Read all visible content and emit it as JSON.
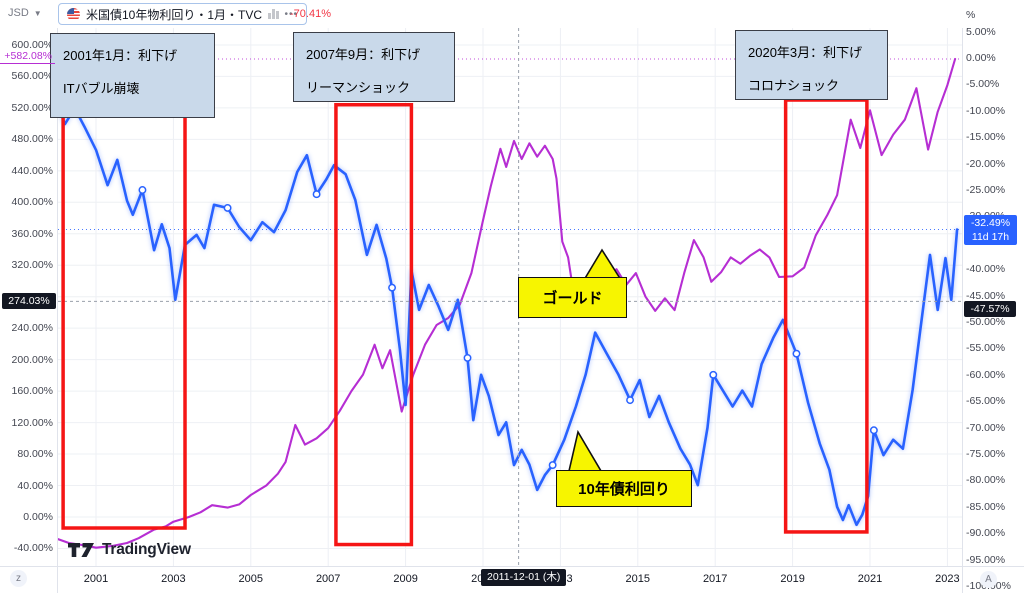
{
  "toolbar": {
    "currency": "JSD",
    "symbol_title": "米国債10年物利回り・1月・TVC",
    "more_label": "•••",
    "change_percent": "-70.41%"
  },
  "axes": {
    "left": {
      "ticks": [
        600,
        560,
        520,
        480,
        440,
        400,
        360,
        320,
        240,
        200,
        160,
        120,
        80,
        40,
        0,
        -40
      ]
    },
    "right": {
      "unit": "%",
      "ticks": [
        5,
        0,
        -5,
        -10,
        -15,
        -20,
        -25,
        -30,
        -40,
        -45,
        -50,
        -55,
        -60,
        -65,
        -70,
        -75,
        -80,
        -85,
        -90,
        -95,
        -100
      ]
    }
  },
  "badges": {
    "gold_current": "+582.08%",
    "crosshair_left": "274.03%",
    "yield_current_line1": "-32.49%",
    "yield_current_line2": "11d 17h",
    "crosshair_right": "-47.57%"
  },
  "bottom": {
    "date_tooltip": "2011-12-01 (木)",
    "logo_text": "TradingView",
    "timezone_button": "z",
    "a_button": "A"
  },
  "annotations": {
    "boxes": [
      {
        "line1": "2001年1月：利下げ",
        "line2": "ITバブル崩壊"
      },
      {
        "line1": "2007年9月：利下げ",
        "line2": "リーマンショック"
      },
      {
        "line1": "2020年3月：利下げ",
        "line2": "コロナショック"
      }
    ],
    "callouts": [
      {
        "label": "ゴールド"
      },
      {
        "label": "10年債利回り"
      }
    ]
  },
  "chart_data": {
    "type": "line",
    "title": "米国債10年物利回り・1月・TVC",
    "x_axis": {
      "unit": "year",
      "visible_ticks": [
        2001,
        2003,
        2005,
        2007,
        2009,
        2011,
        2013,
        2015,
        2017,
        2019,
        2021,
        2023
      ]
    },
    "left_axis": {
      "unit": "%",
      "tick_range": [
        -40,
        600
      ],
      "tick_step": 40
    },
    "right_axis": {
      "unit": "%",
      "tick_range": [
        -100,
        5
      ],
      "tick_step": 5
    },
    "grid": true,
    "crosshair": {
      "date": "2011-12-01 (木)",
      "year_x": 2011.92,
      "left_value": 274.03,
      "right_value": -47.57,
      "hovered_change": "-70.41%"
    },
    "series": [
      {
        "name": "ゴールド",
        "color": "#b62ed3",
        "axis": "left",
        "last_value": 582.08,
        "points": [
          [
            1999.95,
            -27
          ],
          [
            2000.3,
            -33
          ],
          [
            2000.7,
            -36
          ],
          [
            2001.0,
            -39
          ],
          [
            2001.4,
            -37
          ],
          [
            2001.8,
            -33
          ],
          [
            2002.1,
            -27
          ],
          [
            2002.5,
            -16
          ],
          [
            2002.8,
            -12
          ],
          [
            2003.0,
            -6
          ],
          [
            2003.4,
            0
          ],
          [
            2003.7,
            6
          ],
          [
            2004.0,
            15
          ],
          [
            2004.4,
            12
          ],
          [
            2004.7,
            16
          ],
          [
            2005.0,
            28
          ],
          [
            2005.4,
            40
          ],
          [
            2005.7,
            55
          ],
          [
            2005.9,
            70
          ],
          [
            2006.15,
            117
          ],
          [
            2006.4,
            92
          ],
          [
            2006.7,
            100
          ],
          [
            2007.0,
            113
          ],
          [
            2007.3,
            135
          ],
          [
            2007.6,
            160
          ],
          [
            2007.9,
            181
          ],
          [
            2008.2,
            219
          ],
          [
            2008.4,
            189
          ],
          [
            2008.6,
            212
          ],
          [
            2008.9,
            134
          ],
          [
            2009.2,
            181
          ],
          [
            2009.5,
            219
          ],
          [
            2009.8,
            244
          ],
          [
            2010.1,
            253
          ],
          [
            2010.4,
            270
          ],
          [
            2010.7,
            310
          ],
          [
            2011.0,
            377
          ],
          [
            2011.2,
            420
          ],
          [
            2011.45,
            468
          ],
          [
            2011.6,
            445
          ],
          [
            2011.8,
            478
          ],
          [
            2012.0,
            455
          ],
          [
            2012.2,
            475
          ],
          [
            2012.4,
            458
          ],
          [
            2012.6,
            472
          ],
          [
            2012.8,
            455
          ],
          [
            2012.9,
            430
          ],
          [
            2013.05,
            350
          ],
          [
            2013.2,
            330
          ],
          [
            2013.35,
            282
          ],
          [
            2013.55,
            302
          ],
          [
            2013.75,
            282
          ],
          [
            2013.95,
            263
          ],
          [
            2014.2,
            305
          ],
          [
            2014.45,
            315
          ],
          [
            2014.7,
            295
          ],
          [
            2014.95,
            310
          ],
          [
            2015.2,
            280
          ],
          [
            2015.45,
            262
          ],
          [
            2015.7,
            278
          ],
          [
            2015.95,
            263
          ],
          [
            2016.2,
            310
          ],
          [
            2016.45,
            352
          ],
          [
            2016.7,
            330
          ],
          [
            2016.9,
            299
          ],
          [
            2017.15,
            311
          ],
          [
            2017.4,
            330
          ],
          [
            2017.65,
            322
          ],
          [
            2017.9,
            332
          ],
          [
            2018.15,
            340
          ],
          [
            2018.4,
            330
          ],
          [
            2018.65,
            305
          ],
          [
            2019.0,
            306
          ],
          [
            2019.3,
            317
          ],
          [
            2019.6,
            358
          ],
          [
            2019.9,
            384
          ],
          [
            2020.15,
            409
          ],
          [
            2020.5,
            505
          ],
          [
            2020.75,
            469
          ],
          [
            2021.0,
            517
          ],
          [
            2021.3,
            460
          ],
          [
            2021.6,
            486
          ],
          [
            2021.9,
            505
          ],
          [
            2022.2,
            545
          ],
          [
            2022.5,
            467
          ],
          [
            2022.75,
            515
          ],
          [
            2023.0,
            549
          ],
          [
            2023.2,
            582.08
          ]
        ]
      },
      {
        "name": "10年債利回り",
        "color": "#2962ff",
        "axis": "right",
        "last_value": -32.49,
        "points": [
          [
            1999.95,
            -8
          ],
          [
            2000.2,
            -12.5
          ],
          [
            2000.45,
            -9.5
          ],
          [
            2000.7,
            -13
          ],
          [
            2001.0,
            -17.4
          ],
          [
            2001.3,
            -24.1
          ],
          [
            2001.55,
            -19.3
          ],
          [
            2001.8,
            -27
          ],
          [
            2001.95,
            -29.7
          ],
          [
            2002.2,
            -25.0
          ],
          [
            2002.5,
            -36.4
          ],
          [
            2002.7,
            -31.5
          ],
          [
            2002.9,
            -36
          ],
          [
            2003.05,
            -45.8
          ],
          [
            2003.3,
            -35.4
          ],
          [
            2003.6,
            -33.5
          ],
          [
            2003.8,
            -36
          ],
          [
            2004.05,
            -27.8
          ],
          [
            2004.4,
            -28.4
          ],
          [
            2004.7,
            -32
          ],
          [
            2005.0,
            -34.5
          ],
          [
            2005.3,
            -31.1
          ],
          [
            2005.6,
            -33
          ],
          [
            2005.9,
            -28.8
          ],
          [
            2006.2,
            -21.6
          ],
          [
            2006.45,
            -18.4
          ],
          [
            2006.7,
            -25.8
          ],
          [
            2006.95,
            -23
          ],
          [
            2007.15,
            -20.3
          ],
          [
            2007.45,
            -22
          ],
          [
            2007.7,
            -26.9
          ],
          [
            2008.0,
            -37.3
          ],
          [
            2008.25,
            -31.6
          ],
          [
            2008.5,
            -38
          ],
          [
            2008.65,
            -43.5
          ],
          [
            2008.85,
            -55
          ],
          [
            2009.0,
            -65.7
          ],
          [
            2009.15,
            -40.2
          ],
          [
            2009.35,
            -47.7
          ],
          [
            2009.6,
            -43.0
          ],
          [
            2009.85,
            -47
          ],
          [
            2010.1,
            -51.5
          ],
          [
            2010.35,
            -45.8
          ],
          [
            2010.6,
            -56.8
          ],
          [
            2010.75,
            -68.6
          ],
          [
            2010.95,
            -60.0
          ],
          [
            2011.15,
            -64
          ],
          [
            2011.4,
            -71.4
          ],
          [
            2011.6,
            -69
          ],
          [
            2011.8,
            -77.1
          ],
          [
            2012.0,
            -74.2
          ],
          [
            2012.2,
            -77
          ],
          [
            2012.4,
            -81.8
          ],
          [
            2012.6,
            -79
          ],
          [
            2012.8,
            -77.1
          ],
          [
            2013.1,
            -72.3
          ],
          [
            2013.4,
            -66
          ],
          [
            2013.65,
            -60
          ],
          [
            2013.9,
            -52
          ],
          [
            2014.2,
            -56
          ],
          [
            2014.5,
            -60
          ],
          [
            2014.8,
            -64.8
          ],
          [
            2015.05,
            -61
          ],
          [
            2015.3,
            -68
          ],
          [
            2015.55,
            -64
          ],
          [
            2015.8,
            -69
          ],
          [
            2016.1,
            -74
          ],
          [
            2016.35,
            -77
          ],
          [
            2016.55,
            -80.9
          ],
          [
            2016.8,
            -70
          ],
          [
            2016.95,
            -60
          ],
          [
            2017.2,
            -63
          ],
          [
            2017.45,
            -66
          ],
          [
            2017.7,
            -63
          ],
          [
            2017.95,
            -66
          ],
          [
            2018.2,
            -58
          ],
          [
            2018.5,
            -53
          ],
          [
            2018.75,
            -49.6
          ],
          [
            2019.1,
            -56
          ],
          [
            2019.4,
            -65.3
          ],
          [
            2019.7,
            -73
          ],
          [
            2019.95,
            -78
          ],
          [
            2020.15,
            -85
          ],
          [
            2020.3,
            -87.5
          ],
          [
            2020.45,
            -84.7
          ],
          [
            2020.65,
            -88.4
          ],
          [
            2020.8,
            -86.5
          ],
          [
            2020.95,
            -83
          ],
          [
            2021.1,
            -70.5
          ],
          [
            2021.35,
            -75.2
          ],
          [
            2021.6,
            -72.3
          ],
          [
            2021.85,
            -74
          ],
          [
            2022.1,
            -62.9
          ],
          [
            2022.3,
            -51.5
          ],
          [
            2022.55,
            -37.3
          ],
          [
            2022.75,
            -47.7
          ],
          [
            2022.95,
            -37.9
          ],
          [
            2023.1,
            -45.8
          ],
          [
            2023.25,
            -32.49
          ]
        ]
      }
    ],
    "marker_years_on_yield": [
      2002.2,
      2004.4,
      2006.7,
      2008.65,
      2010.6,
      2012.8,
      2014.8,
      2016.95,
      2019.1,
      2021.1
    ],
    "highlight_rects": [
      {
        "from": 2000.15,
        "to": 2003.3,
        "top_pct_left": 515,
        "bottom_pct_left": -14
      },
      {
        "from": 2007.2,
        "to": 2009.15,
        "top_pct_left": 524,
        "bottom_pct_left": -35
      },
      {
        "from": 2018.82,
        "to": 2020.92,
        "top_pct_left": 530,
        "bottom_pct_left": -19
      }
    ]
  }
}
